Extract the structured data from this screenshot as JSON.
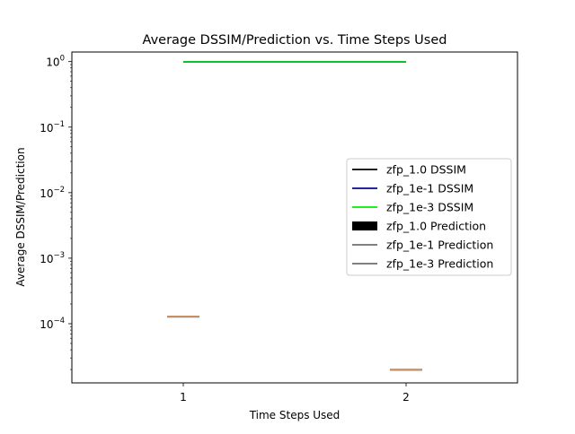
{
  "chart_data": {
    "type": "line",
    "title": "Average DSSIM/Prediction vs. Time Steps Used",
    "xlabel": "Time Steps Used",
    "ylabel": "Average DSSIM/Prediction",
    "yscale": "log",
    "xlim": [
      0.5,
      2.5
    ],
    "ylim": [
      1.25e-05,
      1.4
    ],
    "x_ticks": [
      1,
      2
    ],
    "x_tick_labels": [
      "1",
      "2"
    ],
    "y_ticks": [
      {
        "value": 0.0001,
        "base": "10",
        "exp": "−4"
      },
      {
        "value": 0.001,
        "base": "10",
        "exp": "−3"
      },
      {
        "value": 0.01,
        "base": "10",
        "exp": "−2"
      },
      {
        "value": 0.1,
        "base": "10",
        "exp": "−1"
      },
      {
        "value": 1,
        "base": "10",
        "exp": "0"
      }
    ],
    "legend_position": "right",
    "series": [
      {
        "name": "zfp_1.0 DSSIM",
        "kind": "line",
        "color": "#000000",
        "x": [
          1,
          2
        ],
        "y": [
          0.99,
          0.99
        ]
      },
      {
        "name": "zfp_1e-1 DSSIM",
        "kind": "line",
        "color": "#0000cc",
        "x": [
          1,
          2
        ],
        "y": [
          0.99,
          0.99
        ]
      },
      {
        "name": "zfp_1e-3 DSSIM",
        "kind": "line",
        "color": "#00ee00",
        "x": [
          1,
          2
        ],
        "y": [
          0.99,
          0.99
        ]
      },
      {
        "name": "zfp_1.0 Prediction",
        "kind": "box",
        "color": "#000000"
      },
      {
        "name": "zfp_1e-1 Prediction",
        "kind": "box",
        "color": "#000000"
      },
      {
        "name": "zfp_1e-3 Prediction",
        "kind": "box",
        "color": "#000000"
      }
    ],
    "prediction_boxes": [
      {
        "x": 1,
        "value": 0.000128,
        "color": "#e8873a"
      },
      {
        "x": 2,
        "value": 1.98e-05,
        "color": "#e8873a"
      }
    ]
  }
}
